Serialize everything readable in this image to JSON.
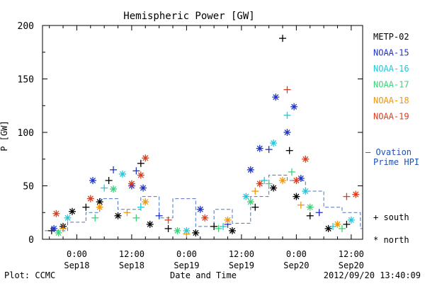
{
  "chart_data": {
    "type": "scatter",
    "title": "Hemispheric Power [GW]",
    "ylabel": "P [GW]",
    "xlabel": "Date and Time",
    "ylim": [
      0,
      200
    ],
    "xlim": [
      "2012-09-17 16:30",
      "2012-09-20 14:30"
    ],
    "yticks": [
      0,
      50,
      100,
      150,
      200
    ],
    "xticks": [
      {
        "time": "2012-09-18 00:00",
        "line1": "0:00",
        "line2": "Sep18"
      },
      {
        "time": "2012-09-18 12:00",
        "line1": "12:00",
        "line2": "Sep18"
      },
      {
        "time": "2012-09-19 00:00",
        "line1": "0:00",
        "line2": "Sep19"
      },
      {
        "time": "2012-09-19 12:00",
        "line1": "12:00",
        "line2": "Sep19"
      },
      {
        "time": "2012-09-20 00:00",
        "line1": "0:00",
        "line2": "Sep20"
      },
      {
        "time": "2012-09-20 12:00",
        "line1": "12:00",
        "line2": "Sep20"
      }
    ],
    "legend": [
      {
        "name": "METP-02",
        "color": "#000000"
      },
      {
        "name": "NOAA-15",
        "color": "#1e34c8"
      },
      {
        "name": "NOAA-16",
        "color": "#22c8dc"
      },
      {
        "name": "NOAA-17",
        "color": "#3cd278"
      },
      {
        "name": "NOAA-18",
        "color": "#f0960a"
      },
      {
        "name": "NOAA-19",
        "color": "#dc3c1e"
      }
    ],
    "model_series": {
      "name": "Ovation Prime HPI",
      "label_line1": "– Ovation",
      "label_line2": "Prime HPI",
      "color": "#1e50b4"
    },
    "marker_key": [
      {
        "symbol": "+",
        "label": "south"
      },
      {
        "symbol": "*",
        "label": "north"
      }
    ],
    "series": [
      {
        "name": "METP-02",
        "color": "#000000",
        "points": [
          {
            "x": "2012-09-17 18:30",
            "y": 8,
            "m": "+"
          },
          {
            "x": "2012-09-17 21:00",
            "y": 12,
            "m": "*"
          },
          {
            "x": "2012-09-17 23:00",
            "y": 26,
            "m": "*"
          },
          {
            "x": "2012-09-18 02:00",
            "y": 30,
            "m": "+"
          },
          {
            "x": "2012-09-18 05:00",
            "y": 35,
            "m": "*"
          },
          {
            "x": "2012-09-18 07:00",
            "y": 55,
            "m": "+"
          },
          {
            "x": "2012-09-18 09:00",
            "y": 22,
            "m": "*"
          },
          {
            "x": "2012-09-18 14:00",
            "y": 71,
            "m": "+"
          },
          {
            "x": "2012-09-18 16:00",
            "y": 14,
            "m": "*"
          },
          {
            "x": "2012-09-18 20:00",
            "y": 10,
            "m": "+"
          },
          {
            "x": "2012-09-19 02:00",
            "y": 6,
            "m": "*"
          },
          {
            "x": "2012-09-19 06:00",
            "y": 12,
            "m": "+"
          },
          {
            "x": "2012-09-19 10:00",
            "y": 8,
            "m": "*"
          },
          {
            "x": "2012-09-19 15:00",
            "y": 30,
            "m": "+"
          },
          {
            "x": "2012-09-19 19:00",
            "y": 48,
            "m": "*"
          },
          {
            "x": "2012-09-19 21:00",
            "y": 188,
            "m": "+"
          },
          {
            "x": "2012-09-19 22:30",
            "y": 83,
            "m": "+"
          },
          {
            "x": "2012-09-20 00:00",
            "y": 40,
            "m": "*"
          },
          {
            "x": "2012-09-20 03:00",
            "y": 22,
            "m": "+"
          },
          {
            "x": "2012-09-20 07:00",
            "y": 10,
            "m": "*"
          },
          {
            "x": "2012-09-20 11:00",
            "y": 14,
            "m": "+"
          }
        ]
      },
      {
        "name": "NOAA-15",
        "color": "#1e34c8",
        "points": [
          {
            "x": "2012-09-17 19:00",
            "y": 10,
            "m": "*"
          },
          {
            "x": "2012-09-18 03:30",
            "y": 55,
            "m": "*"
          },
          {
            "x": "2012-09-18 08:00",
            "y": 65,
            "m": "+"
          },
          {
            "x": "2012-09-18 12:00",
            "y": 50,
            "m": "*"
          },
          {
            "x": "2012-09-18 13:00",
            "y": 64,
            "m": "+"
          },
          {
            "x": "2012-09-18 14:30",
            "y": 48,
            "m": "*"
          },
          {
            "x": "2012-09-18 18:00",
            "y": 22,
            "m": "+"
          },
          {
            "x": "2012-09-19 03:00",
            "y": 28,
            "m": "*"
          },
          {
            "x": "2012-09-19 09:00",
            "y": 14,
            "m": "+"
          },
          {
            "x": "2012-09-19 14:00",
            "y": 65,
            "m": "*"
          },
          {
            "x": "2012-09-19 16:00",
            "y": 85,
            "m": "*"
          },
          {
            "x": "2012-09-19 18:00",
            "y": 84,
            "m": "+"
          },
          {
            "x": "2012-09-19 19:30",
            "y": 133,
            "m": "*"
          },
          {
            "x": "2012-09-19 22:00",
            "y": 100,
            "m": "*"
          },
          {
            "x": "2012-09-19 23:30",
            "y": 124,
            "m": "*"
          },
          {
            "x": "2012-09-20 01:00",
            "y": 57,
            "m": "*"
          },
          {
            "x": "2012-09-20 05:00",
            "y": 25,
            "m": "+"
          }
        ]
      },
      {
        "name": "NOAA-16",
        "color": "#22c8dc",
        "points": [
          {
            "x": "2012-09-17 22:00",
            "y": 20,
            "m": "*"
          },
          {
            "x": "2012-09-18 06:00",
            "y": 48,
            "m": "+"
          },
          {
            "x": "2012-09-18 10:00",
            "y": 61,
            "m": "*"
          },
          {
            "x": "2012-09-18 14:00",
            "y": 30,
            "m": "+"
          },
          {
            "x": "2012-09-19 00:00",
            "y": 8,
            "m": "*"
          },
          {
            "x": "2012-09-19 08:00",
            "y": 12,
            "m": "+"
          },
          {
            "x": "2012-09-19 13:00",
            "y": 40,
            "m": "*"
          },
          {
            "x": "2012-09-19 17:00",
            "y": 55,
            "m": "+"
          },
          {
            "x": "2012-09-19 19:00",
            "y": 90,
            "m": "*"
          },
          {
            "x": "2012-09-19 22:00",
            "y": 116,
            "m": "+"
          },
          {
            "x": "2012-09-20 02:00",
            "y": 45,
            "m": "*"
          },
          {
            "x": "2012-09-20 08:00",
            "y": 12,
            "m": "+"
          },
          {
            "x": "2012-09-20 12:00",
            "y": 18,
            "m": "*"
          }
        ]
      },
      {
        "name": "NOAA-17",
        "color": "#3cd278",
        "points": [
          {
            "x": "2012-09-17 20:00",
            "y": 6,
            "m": "*"
          },
          {
            "x": "2012-09-18 04:00",
            "y": 20,
            "m": "+"
          },
          {
            "x": "2012-09-18 08:00",
            "y": 47,
            "m": "*"
          },
          {
            "x": "2012-09-18 13:00",
            "y": 20,
            "m": "+"
          },
          {
            "x": "2012-09-18 22:00",
            "y": 8,
            "m": "*"
          },
          {
            "x": "2012-09-19 07:00",
            "y": 10,
            "m": "+"
          },
          {
            "x": "2012-09-19 14:00",
            "y": 35,
            "m": "*"
          },
          {
            "x": "2012-09-19 18:00",
            "y": 52,
            "m": "+"
          },
          {
            "x": "2012-09-19 23:00",
            "y": 63,
            "m": "+"
          },
          {
            "x": "2012-09-20 03:00",
            "y": 30,
            "m": "*"
          },
          {
            "x": "2012-09-20 10:00",
            "y": 10,
            "m": "+"
          }
        ]
      },
      {
        "name": "NOAA-18",
        "color": "#f0960a",
        "points": [
          {
            "x": "2012-09-17 21:00",
            "y": 10,
            "m": "+"
          },
          {
            "x": "2012-09-18 05:00",
            "y": 30,
            "m": "*"
          },
          {
            "x": "2012-09-18 11:00",
            "y": 25,
            "m": "+"
          },
          {
            "x": "2012-09-18 15:00",
            "y": 35,
            "m": "*"
          },
          {
            "x": "2012-09-19 00:00",
            "y": 5,
            "m": "+"
          },
          {
            "x": "2012-09-19 09:00",
            "y": 18,
            "m": "*"
          },
          {
            "x": "2012-09-19 15:00",
            "y": 45,
            "m": "+"
          },
          {
            "x": "2012-09-19 21:00",
            "y": 55,
            "m": "*"
          },
          {
            "x": "2012-09-20 01:00",
            "y": 32,
            "m": "+"
          },
          {
            "x": "2012-09-20 09:00",
            "y": 14,
            "m": "*"
          }
        ]
      },
      {
        "name": "NOAA-19",
        "color": "#dc3c1e",
        "points": [
          {
            "x": "2012-09-17 19:30",
            "y": 24,
            "m": "*"
          },
          {
            "x": "2012-09-18 03:00",
            "y": 38,
            "m": "*"
          },
          {
            "x": "2012-09-18 12:00",
            "y": 52,
            "m": "*"
          },
          {
            "x": "2012-09-18 14:00",
            "y": 60,
            "m": "*"
          },
          {
            "x": "2012-09-18 15:00",
            "y": 76,
            "m": "*"
          },
          {
            "x": "2012-09-18 20:00",
            "y": 18,
            "m": "+"
          },
          {
            "x": "2012-09-19 04:00",
            "y": 20,
            "m": "*"
          },
          {
            "x": "2012-09-19 16:00",
            "y": 52,
            "m": "*"
          },
          {
            "x": "2012-09-19 22:00",
            "y": 140,
            "m": "+"
          },
          {
            "x": "2012-09-20 00:00",
            "y": 55,
            "m": "*"
          },
          {
            "x": "2012-09-20 02:00",
            "y": 75,
            "m": "*"
          },
          {
            "x": "2012-09-20 11:00",
            "y": 40,
            "m": "+"
          },
          {
            "x": "2012-09-20 13:00",
            "y": 42,
            "m": "*"
          }
        ]
      }
    ],
    "hpi_model": [
      {
        "x": "2012-09-17 17:00",
        "y": 8
      },
      {
        "x": "2012-09-17 22:00",
        "y": 16
      },
      {
        "x": "2012-09-18 02:00",
        "y": 25
      },
      {
        "x": "2012-09-18 05:00",
        "y": 38
      },
      {
        "x": "2012-09-18 09:00",
        "y": 28
      },
      {
        "x": "2012-09-18 14:00",
        "y": 40
      },
      {
        "x": "2012-09-18 18:00",
        "y": 20
      },
      {
        "x": "2012-09-18 21:00",
        "y": 38
      },
      {
        "x": "2012-09-19 02:00",
        "y": 12
      },
      {
        "x": "2012-09-19 06:00",
        "y": 28
      },
      {
        "x": "2012-09-19 10:00",
        "y": 15
      },
      {
        "x": "2012-09-19 14:00",
        "y": 40
      },
      {
        "x": "2012-09-19 18:00",
        "y": 60
      },
      {
        "x": "2012-09-19 22:00",
        "y": 55
      },
      {
        "x": "2012-09-20 02:00",
        "y": 45
      },
      {
        "x": "2012-09-20 06:00",
        "y": 30
      },
      {
        "x": "2012-09-20 10:00",
        "y": 25
      },
      {
        "x": "2012-09-20 14:00",
        "y": 10
      }
    ]
  },
  "footer": {
    "left": "Plot: CCMC",
    "center": "Date and Time",
    "right": "2012/09/20 13:40:09"
  }
}
